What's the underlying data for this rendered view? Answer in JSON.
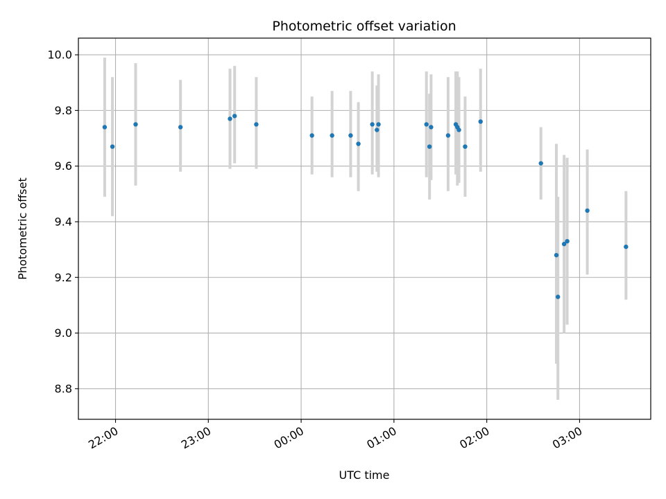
{
  "chart_data": {
    "type": "scatter",
    "title": "Photometric offset variation",
    "xlabel": "UTC time",
    "ylabel": "Photometric offset",
    "x_axis": "time",
    "x_unit": "hours",
    "xlim": [
      "21:36",
      "03:46"
    ],
    "ylim": [
      8.69,
      10.06
    ],
    "x_ticks": [
      "22:00",
      "23:00",
      "00:00",
      "01:00",
      "02:00",
      "03:00"
    ],
    "x_tick_values": [
      "22:00",
      "23:00",
      "00:00",
      "01:00",
      "02:00",
      "03:00"
    ],
    "y_ticks": [
      8.8,
      9.0,
      9.2,
      9.4,
      9.6,
      9.8,
      10.0
    ],
    "y_tick_labels": [
      "8.8",
      "9.0",
      "9.2",
      "9.4",
      "9.6",
      "9.8",
      "10.0"
    ],
    "grid": true,
    "legend": false,
    "colors": {
      "point": "#1f77b4",
      "errorbar": "#d3d3d3",
      "grid": "#b0b0b0"
    },
    "points": [
      {
        "x": "21:53",
        "y": 9.74,
        "lo": 9.49,
        "hi": 9.99
      },
      {
        "x": "21:58",
        "y": 9.67,
        "lo": 9.42,
        "hi": 9.92
      },
      {
        "x": "22:13",
        "y": 9.75,
        "lo": 9.53,
        "hi": 9.97
      },
      {
        "x": "22:42",
        "y": 9.74,
        "lo": 9.58,
        "hi": 9.91
      },
      {
        "x": "23:14",
        "y": 9.77,
        "lo": 9.59,
        "hi": 9.95
      },
      {
        "x": "23:17",
        "y": 9.78,
        "lo": 9.61,
        "hi": 9.96
      },
      {
        "x": "23:31",
        "y": 9.75,
        "lo": 9.59,
        "hi": 9.92
      },
      {
        "x": "00:07",
        "y": 9.71,
        "lo": 9.57,
        "hi": 9.85
      },
      {
        "x": "00:20",
        "y": 9.71,
        "lo": 9.56,
        "hi": 9.87
      },
      {
        "x": "00:32",
        "y": 9.71,
        "lo": 9.56,
        "hi": 9.87
      },
      {
        "x": "00:37",
        "y": 9.68,
        "lo": 9.51,
        "hi": 9.83
      },
      {
        "x": "00:46",
        "y": 9.75,
        "lo": 9.57,
        "hi": 9.94
      },
      {
        "x": "00:49",
        "y": 9.73,
        "lo": 9.58,
        "hi": 9.89
      },
      {
        "x": "00:50",
        "y": 9.75,
        "lo": 9.56,
        "hi": 9.93
      },
      {
        "x": "01:21",
        "y": 9.75,
        "lo": 9.56,
        "hi": 9.94
      },
      {
        "x": "01:23",
        "y": 9.67,
        "lo": 9.48,
        "hi": 9.86
      },
      {
        "x": "01:24",
        "y": 9.74,
        "lo": 9.55,
        "hi": 9.93
      },
      {
        "x": "01:35",
        "y": 9.71,
        "lo": 9.51,
        "hi": 9.92
      },
      {
        "x": "01:40",
        "y": 9.75,
        "lo": 9.57,
        "hi": 9.94
      },
      {
        "x": "01:41",
        "y": 9.74,
        "lo": 9.53,
        "hi": 9.94
      },
      {
        "x": "01:42",
        "y": 9.73,
        "lo": 9.54,
        "hi": 9.92
      },
      {
        "x": "01:46",
        "y": 9.67,
        "lo": 9.49,
        "hi": 9.85
      },
      {
        "x": "01:56",
        "y": 9.76,
        "lo": 9.58,
        "hi": 9.95
      },
      {
        "x": "02:35",
        "y": 9.61,
        "lo": 9.48,
        "hi": 9.74
      },
      {
        "x": "02:45",
        "y": 9.28,
        "lo": 8.89,
        "hi": 9.68
      },
      {
        "x": "02:46",
        "y": 9.13,
        "lo": 8.76,
        "hi": 9.49
      },
      {
        "x": "02:50",
        "y": 9.32,
        "lo": 9.0,
        "hi": 9.64
      },
      {
        "x": "02:52",
        "y": 9.33,
        "lo": 9.03,
        "hi": 9.63
      },
      {
        "x": "03:05",
        "y": 9.44,
        "lo": 9.21,
        "hi": 9.66
      },
      {
        "x": "03:30",
        "y": 9.31,
        "lo": 9.12,
        "hi": 9.51
      }
    ]
  }
}
